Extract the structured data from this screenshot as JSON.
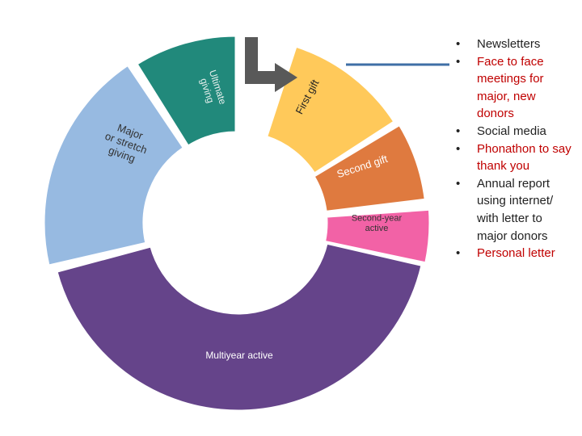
{
  "diagram": {
    "segments": [
      {
        "key": "first-gift",
        "label_lines": [
          "First gift"
        ],
        "color": "#FFC95A",
        "text_color": "#222222"
      },
      {
        "key": "second-gift",
        "label_lines": [
          "Second gift"
        ],
        "color": "#DF7A3F",
        "text_color": "#ffffff"
      },
      {
        "key": "second-year-active",
        "label_lines": [
          "Second-year",
          "active"
        ],
        "color": "#F262A6",
        "text_color": "#333333"
      },
      {
        "key": "multiyear-active",
        "label_lines": [
          "Multiyear active"
        ],
        "color": "#65448A",
        "text_color": "#ffffff"
      },
      {
        "key": "major-stretch",
        "label_lines": [
          "Major",
          "or stretch",
          "giving"
        ],
        "color": "#97BAE1",
        "text_color": "#333333"
      },
      {
        "key": "ultimate-giving",
        "label_lines": [
          "Ultimate",
          "giving"
        ],
        "color": "#21897B",
        "text_color": "#e8f0ee"
      }
    ],
    "arrow_color": "#595959",
    "connector_color": "#3F6FA6"
  },
  "bullets": [
    {
      "text": "Newsletters",
      "color": "#222222"
    },
    {
      "text": "Face to face meetings for major, new donors",
      "color": "#C00000"
    },
    {
      "text": "Social media",
      "color": "#222222"
    },
    {
      "text": "Phonathon to say thank you",
      "color": "#C00000"
    },
    {
      "text": "Annual report using internet/ with letter to major donors",
      "color": "#222222"
    },
    {
      "text": "Personal letter",
      "color": "#C00000"
    }
  ]
}
